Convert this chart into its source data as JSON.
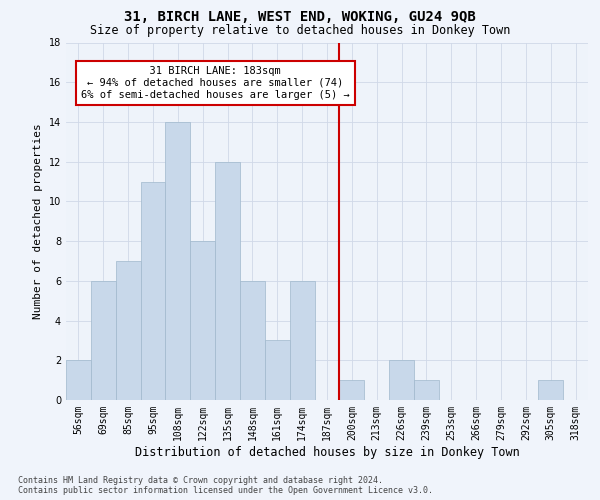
{
  "title": "31, BIRCH LANE, WEST END, WOKING, GU24 9QB",
  "subtitle": "Size of property relative to detached houses in Donkey Town",
  "xlabel": "Distribution of detached houses by size in Donkey Town",
  "ylabel": "Number of detached properties",
  "footnote1": "Contains HM Land Registry data © Crown copyright and database right 2024.",
  "footnote2": "Contains public sector information licensed under the Open Government Licence v3.0.",
  "bin_labels": [
    "56sqm",
    "69sqm",
    "85sqm",
    "95sqm",
    "108sqm",
    "122sqm",
    "135sqm",
    "148sqm",
    "161sqm",
    "174sqm",
    "187sqm",
    "200sqm",
    "213sqm",
    "226sqm",
    "239sqm",
    "253sqm",
    "266sqm",
    "279sqm",
    "292sqm",
    "305sqm",
    "318sqm"
  ],
  "bar_heights": [
    2,
    6,
    7,
    11,
    14,
    8,
    12,
    6,
    3,
    6,
    0,
    1,
    0,
    2,
    1,
    0,
    0,
    0,
    0,
    1,
    0
  ],
  "bar_color": "#c8d8ea",
  "bar_edge_color": "#a0b8cc",
  "grid_color": "#d0d8e8",
  "annotation_line1": "31 BIRCH LANE: 183sqm",
  "annotation_line2": "← 94% of detached houses are smaller (74)",
  "annotation_line3": "6% of semi-detached houses are larger (5) →",
  "annotation_box_facecolor": "#ffffff",
  "annotation_box_edgecolor": "#cc0000",
  "vline_color": "#cc0000",
  "vline_x_index": 10.5,
  "ylim": [
    0,
    18
  ],
  "yticks": [
    0,
    2,
    4,
    6,
    8,
    10,
    12,
    14,
    16,
    18
  ],
  "bg_color": "#eef3fa",
  "fig_bg_color": "#f0f4fb",
  "title_fontsize": 10,
  "subtitle_fontsize": 8.5,
  "xlabel_fontsize": 8.5,
  "ylabel_fontsize": 8,
  "tick_fontsize": 7,
  "annot_fontsize": 7.5,
  "footnote_fontsize": 6
}
